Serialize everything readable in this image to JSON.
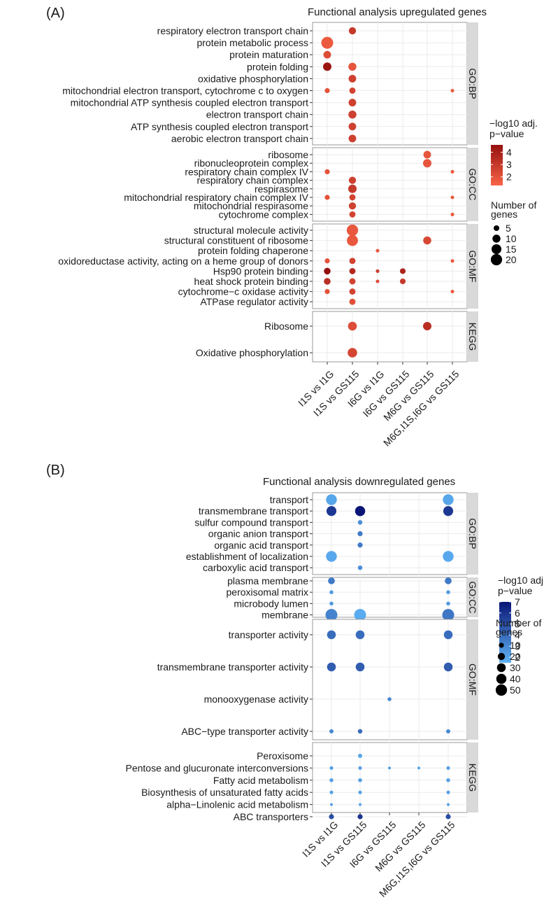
{
  "figure_labels": {
    "A": "(A)",
    "B": "(B)"
  },
  "colors": {
    "panel_bg": "#ffffff",
    "panel_border": "#999999",
    "grid": "#ebebeb",
    "strip_bg": "#d9d9d9",
    "text": "#1a1a1a",
    "tick": "#333333",
    "up_low": "#f86446",
    "up_high": "#951010",
    "down_low": "#5fb4f6",
    "down_high": "#0a1576"
  },
  "chart_data": [
    {
      "type": "scatter",
      "title": "Functional analysis upregulated genes",
      "xlabel": "",
      "ylabel": "",
      "x_categories": [
        "I1S vs I1G",
        "I1S vs GS115",
        "I6G vs I1G",
        "I6G vs GS115",
        "M6G vs GS115",
        "M6G,I1S,I6G vs GS115"
      ],
      "color_legend": {
        "title_line1": "−log10 adj.",
        "title_line2": "p−value",
        "min": 1.3,
        "max": 4.6,
        "ticks": [
          2,
          3,
          4
        ],
        "tick_labels": [
          "2",
          "3",
          "4"
        ]
      },
      "size_legend": {
        "title_line1": "Number of",
        "title_line2": "genes",
        "values": [
          5,
          10,
          15,
          20
        ],
        "labels": [
          "5",
          "10",
          "15",
          "20"
        ],
        "max": 22
      },
      "facets": [
        {
          "strip": "GO:BP",
          "terms": [
            "respiratory electron transport chain",
            "protein metabolic process",
            "protein maturation",
            "protein folding",
            "oxidative phosphorylation",
            "mitochondrial electron transport, cytochrome c to oxygen",
            "mitochondrial ATP synthesis coupled electron transport",
            "electron transport chain",
            "ATP synthesis coupled electron transport",
            "aerobic electron transport chain"
          ],
          "points": [
            {
              "term": 0,
              "x": 1,
              "size": 8,
              "logp": 3.0
            },
            {
              "term": 1,
              "x": 0,
              "size": 22,
              "logp": 1.7
            },
            {
              "term": 2,
              "x": 0,
              "size": 9,
              "logp": 2.2
            },
            {
              "term": 3,
              "x": 0,
              "size": 11,
              "logp": 4.4
            },
            {
              "term": 3,
              "x": 1,
              "size": 10,
              "logp": 1.9
            },
            {
              "term": 4,
              "x": 1,
              "size": 9,
              "logp": 2.7
            },
            {
              "term": 5,
              "x": 0,
              "size": 4,
              "logp": 2.0
            },
            {
              "term": 5,
              "x": 1,
              "size": 6,
              "logp": 2.6
            },
            {
              "term": 5,
              "x": 5,
              "size": 2,
              "logp": 1.7
            },
            {
              "term": 6,
              "x": 1,
              "size": 9,
              "logp": 2.7
            },
            {
              "term": 7,
              "x": 1,
              "size": 10,
              "logp": 2.7
            },
            {
              "term": 8,
              "x": 1,
              "size": 9,
              "logp": 2.7
            },
            {
              "term": 9,
              "x": 1,
              "size": 9,
              "logp": 2.7
            }
          ]
        },
        {
          "strip": "GO:CC",
          "terms": [
            "ribosome",
            "ribonucleoprotein complex",
            "respiratory chain complex IV",
            "respiratory chain complex",
            "respirasome",
            "mitochondrial respiratory chain complex IV",
            "mitochondrial respirasome",
            "cytochrome complex"
          ],
          "points": [
            {
              "term": 0,
              "x": 4,
              "size": 9,
              "logp": 1.9
            },
            {
              "term": 1,
              "x": 4,
              "size": 11,
              "logp": 1.9
            },
            {
              "term": 2,
              "x": 0,
              "size": 4,
              "logp": 2.0
            },
            {
              "term": 2,
              "x": 5,
              "size": 2,
              "logp": 1.7
            },
            {
              "term": 3,
              "x": 1,
              "size": 8,
              "logp": 2.7
            },
            {
              "term": 4,
              "x": 1,
              "size": 11,
              "logp": 3.0
            },
            {
              "term": 5,
              "x": 0,
              "size": 4,
              "logp": 2.0
            },
            {
              "term": 5,
              "x": 1,
              "size": 6,
              "logp": 2.6
            },
            {
              "term": 5,
              "x": 5,
              "size": 2,
              "logp": 1.7
            },
            {
              "term": 6,
              "x": 1,
              "size": 8,
              "logp": 2.7
            },
            {
              "term": 7,
              "x": 1,
              "size": 6,
              "logp": 2.6
            },
            {
              "term": 7,
              "x": 5,
              "size": 2,
              "logp": 1.7
            }
          ]
        },
        {
          "strip": "GO:MF",
          "terms": [
            "structural molecule activity",
            "structural constituent of ribosome",
            "protein folding chaperone",
            "oxidoreductase activity, acting on a heme group of donors",
            "Hsp90 protein binding",
            "heat shock protein binding",
            "cytochrome−c oxidase activity",
            "ATPase regulator activity"
          ],
          "points": [
            {
              "term": 0,
              "x": 1,
              "size": 20,
              "logp": 1.8
            },
            {
              "term": 1,
              "x": 1,
              "size": 19,
              "logp": 1.8
            },
            {
              "term": 1,
              "x": 4,
              "size": 10,
              "logp": 2.4
            },
            {
              "term": 2,
              "x": 2,
              "size": 2,
              "logp": 1.8
            },
            {
              "term": 3,
              "x": 0,
              "size": 4,
              "logp": 2.0
            },
            {
              "term": 3,
              "x": 1,
              "size": 6,
              "logp": 2.6
            },
            {
              "term": 3,
              "x": 5,
              "size": 2,
              "logp": 1.7
            },
            {
              "term": 4,
              "x": 0,
              "size": 7,
              "logp": 4.6
            },
            {
              "term": 4,
              "x": 1,
              "size": 6,
              "logp": 3.6
            },
            {
              "term": 4,
              "x": 2,
              "size": 2,
              "logp": 2.8
            },
            {
              "term": 4,
              "x": 3,
              "size": 5,
              "logp": 3.8
            },
            {
              "term": 5,
              "x": 0,
              "size": 7,
              "logp": 3.4
            },
            {
              "term": 5,
              "x": 1,
              "size": 6,
              "logp": 2.6
            },
            {
              "term": 5,
              "x": 2,
              "size": 2,
              "logp": 2.3
            },
            {
              "term": 5,
              "x": 3,
              "size": 5,
              "logp": 3.0
            },
            {
              "term": 6,
              "x": 0,
              "size": 4,
              "logp": 2.0
            },
            {
              "term": 6,
              "x": 1,
              "size": 6,
              "logp": 2.6
            },
            {
              "term": 6,
              "x": 5,
              "size": 2,
              "logp": 1.7
            },
            {
              "term": 7,
              "x": 1,
              "size": 6,
              "logp": 2.1
            }
          ]
        },
        {
          "strip": "KEGG",
          "terms": [
            "Ribosome",
            "Oxidative phosphorylation"
          ],
          "points": [
            {
              "term": 0,
              "x": 1,
              "size": 12,
              "logp": 2.2
            },
            {
              "term": 0,
              "x": 4,
              "size": 11,
              "logp": 3.4
            },
            {
              "term": 1,
              "x": 1,
              "size": 14,
              "logp": 2.5
            }
          ]
        }
      ]
    },
    {
      "type": "scatter",
      "title": "Functional analysis downregulated genes",
      "xlabel": "",
      "ylabel": "",
      "x_categories": [
        "I1S vs I1G",
        "I1S vs GS115",
        "I6G vs GS115",
        "M6G vs GS115",
        "M6G,I1S,I6G vs GS115"
      ],
      "color_legend": {
        "title_line1": "−log10 adj",
        "title_line2": "p−value",
        "min": 1.5,
        "max": 7.0,
        "ticks": [
          2,
          3,
          4,
          5,
          6,
          7
        ],
        "tick_labels": [
          "2",
          "3",
          "4",
          "5",
          "6",
          "7"
        ]
      },
      "size_legend": {
        "title_line1": "Number of",
        "title_line2": "genes",
        "values": [
          10,
          20,
          30,
          40,
          50
        ],
        "labels": [
          "10",
          "20",
          "30",
          "40",
          "50"
        ],
        "max": 55
      },
      "facets": [
        {
          "strip": "GO:BP",
          "terms": [
            "transport",
            "transmembrane transport",
            "sulfur compound transport",
            "organic anion transport",
            "organic acid transport",
            "establishment of localization",
            "carboxylic acid transport"
          ],
          "points": [
            {
              "term": 0,
              "x": 0,
              "size": 45,
              "logp": 2.0
            },
            {
              "term": 0,
              "x": 4,
              "size": 45,
              "logp": 2.0
            },
            {
              "term": 1,
              "x": 0,
              "size": 38,
              "logp": 5.8
            },
            {
              "term": 1,
              "x": 1,
              "size": 40,
              "logp": 7.0
            },
            {
              "term": 1,
              "x": 4,
              "size": 38,
              "logp": 5.8
            },
            {
              "term": 2,
              "x": 1,
              "size": 8,
              "logp": 2.8
            },
            {
              "term": 3,
              "x": 1,
              "size": 10,
              "logp": 3.5
            },
            {
              "term": 4,
              "x": 1,
              "size": 10,
              "logp": 3.5
            },
            {
              "term": 5,
              "x": 0,
              "size": 45,
              "logp": 1.9
            },
            {
              "term": 5,
              "x": 4,
              "size": 45,
              "logp": 1.9
            },
            {
              "term": 6,
              "x": 1,
              "size": 8,
              "logp": 2.8
            }
          ]
        },
        {
          "strip": "GO:CC",
          "terms": [
            "plasma membrane",
            "peroxisomal matrix",
            "microbody lumen",
            "membrane"
          ],
          "points": [
            {
              "term": 0,
              "x": 0,
              "size": 18,
              "logp": 3.5
            },
            {
              "term": 0,
              "x": 4,
              "size": 18,
              "logp": 3.5
            },
            {
              "term": 1,
              "x": 0,
              "size": 6,
              "logp": 2.4
            },
            {
              "term": 1,
              "x": 4,
              "size": 6,
              "logp": 2.4
            },
            {
              "term": 2,
              "x": 0,
              "size": 6,
              "logp": 2.4
            },
            {
              "term": 2,
              "x": 4,
              "size": 6,
              "logp": 2.4
            },
            {
              "term": 3,
              "x": 0,
              "size": 55,
              "logp": 3.2
            },
            {
              "term": 3,
              "x": 1,
              "size": 55,
              "logp": 1.8
            },
            {
              "term": 3,
              "x": 4,
              "size": 55,
              "logp": 3.6
            }
          ]
        },
        {
          "strip": "GO:MF",
          "terms": [
            "transporter activity",
            "transmembrane transporter activity",
            "monooxygenase activity",
            "ABC−type transporter activity"
          ],
          "points": [
            {
              "term": 0,
              "x": 0,
              "size": 30,
              "logp": 4.0
            },
            {
              "term": 0,
              "x": 1,
              "size": 30,
              "logp": 4.0
            },
            {
              "term": 0,
              "x": 4,
              "size": 30,
              "logp": 4.0
            },
            {
              "term": 1,
              "x": 0,
              "size": 30,
              "logp": 4.5
            },
            {
              "term": 1,
              "x": 1,
              "size": 30,
              "logp": 4.5
            },
            {
              "term": 1,
              "x": 4,
              "size": 30,
              "logp": 4.5
            },
            {
              "term": 2,
              "x": 2,
              "size": 6,
              "logp": 3.0
            },
            {
              "term": 3,
              "x": 0,
              "size": 7,
              "logp": 3.0
            },
            {
              "term": 3,
              "x": 1,
              "size": 8,
              "logp": 4.0
            },
            {
              "term": 3,
              "x": 4,
              "size": 7,
              "logp": 3.0
            }
          ]
        },
        {
          "strip": "KEGG",
          "terms": [
            "Peroxisome",
            "Pentose and glucuronate interconversions",
            "Fatty acid metabolism",
            "Biosynthesis of unsaturated fatty acids",
            "alpha−Linolenic acid metabolism",
            "ABC transporters"
          ],
          "points": [
            {
              "term": 0,
              "x": 1,
              "size": 7,
              "logp": 2.0
            },
            {
              "term": 1,
              "x": 0,
              "size": 5,
              "logp": 2.2
            },
            {
              "term": 1,
              "x": 1,
              "size": 5,
              "logp": 2.2
            },
            {
              "term": 1,
              "x": 2,
              "size": 3,
              "logp": 2.2
            },
            {
              "term": 1,
              "x": 3,
              "size": 3,
              "logp": 2.2
            },
            {
              "term": 1,
              "x": 4,
              "size": 5,
              "logp": 2.2
            },
            {
              "term": 2,
              "x": 0,
              "size": 6,
              "logp": 2.2
            },
            {
              "term": 2,
              "x": 1,
              "size": 6,
              "logp": 2.2
            },
            {
              "term": 2,
              "x": 4,
              "size": 6,
              "logp": 2.2
            },
            {
              "term": 3,
              "x": 0,
              "size": 5,
              "logp": 2.2
            },
            {
              "term": 3,
              "x": 1,
              "size": 5,
              "logp": 2.2
            },
            {
              "term": 3,
              "x": 4,
              "size": 5,
              "logp": 2.2
            },
            {
              "term": 4,
              "x": 0,
              "size": 3,
              "logp": 2.2
            },
            {
              "term": 4,
              "x": 1,
              "size": 3,
              "logp": 2.2
            },
            {
              "term": 4,
              "x": 4,
              "size": 3,
              "logp": 2.2
            },
            {
              "term": 5,
              "x": 0,
              "size": 10,
              "logp": 5.0
            },
            {
              "term": 5,
              "x": 1,
              "size": 10,
              "logp": 6.0
            },
            {
              "term": 5,
              "x": 4,
              "size": 10,
              "logp": 5.0
            }
          ]
        }
      ]
    }
  ]
}
